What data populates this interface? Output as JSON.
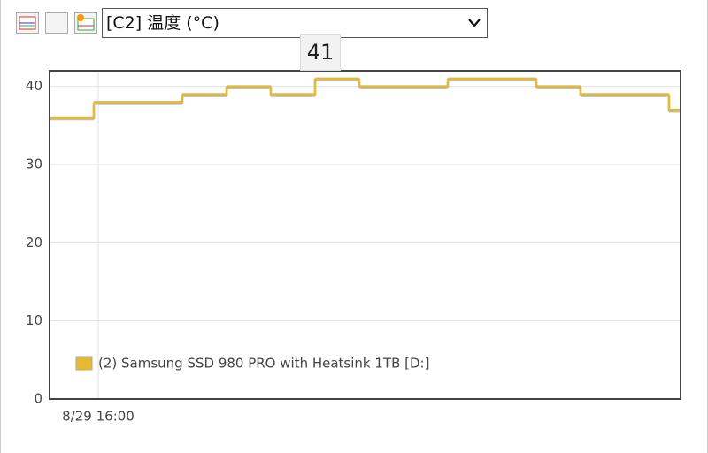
{
  "toolbar": {
    "select": "[C2] 温度 (°C)"
  },
  "chart_data": {
    "type": "line",
    "step": true,
    "tooltip": "41",
    "categories": [
      null,
      "8/29 16:00",
      null,
      null,
      null,
      null,
      null,
      null,
      null,
      null,
      null,
      null,
      null,
      null,
      null
    ],
    "series": [
      {
        "name": "(2) Samsung SSD 980 PRO with Heatsink 1TB [D:]",
        "color": "#e8b830",
        "values": [
          36,
          38,
          38,
          39,
          40,
          39,
          41,
          40,
          40,
          41,
          41,
          40,
          39,
          39,
          37
        ]
      }
    ],
    "ylim": [
      0,
      42
    ],
    "yticks": [
      0,
      10,
      20,
      30,
      40
    ],
    "grid": true
  }
}
